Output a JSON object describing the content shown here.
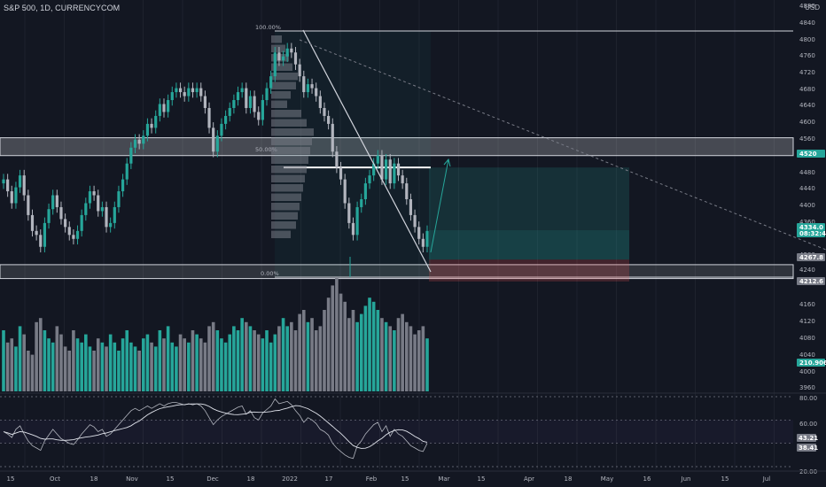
{
  "header": {
    "symbol_line": "S&P 500, 1D, CURRENCYCOM",
    "currency": "USD"
  },
  "colors": {
    "background": "#131722",
    "up": "#26a69a",
    "down": "#b2b5be",
    "zone": "#ffffff",
    "target_zone": "#26a69a",
    "stop_zone": "#ef5350"
  },
  "price_axis": {
    "ticks": [
      "4880",
      "4840",
      "4800",
      "4760",
      "4720",
      "4680",
      "4640",
      "4600",
      "4560",
      "4480",
      "4440",
      "4400",
      "4360",
      "4280",
      "4240",
      "4160",
      "4120",
      "4080",
      "4040",
      "4000",
      "3960"
    ],
    "badges": [
      {
        "label": "4520",
        "color": "#26a69a"
      },
      {
        "label": "4334.0",
        "sub": "08:32:40",
        "color": "#26a69a"
      },
      {
        "label": "4267.8",
        "color": "#787b86"
      },
      {
        "label": "4212.6",
        "color": "#787b86"
      },
      {
        "label": "210.9066",
        "color": "#26a69a"
      }
    ]
  },
  "rsi_axis": {
    "ticks": [
      "80.00",
      "60.00",
      "20.00"
    ],
    "badges": [
      {
        "label": "43.21",
        "color": "#787b86"
      },
      {
        "label": "38.41",
        "color": "#787b86"
      }
    ]
  },
  "time_axis": [
    "15",
    "Oct",
    "18",
    "Nov",
    "15",
    "Dec",
    "18",
    "2022",
    "17",
    "Feb",
    "15",
    "Mar",
    "15",
    "Apr",
    "18",
    "May",
    "16",
    "Jun",
    "15",
    "Jul"
  ],
  "fib_labels": [
    "100.00%",
    "50.00%",
    "0.00%"
  ],
  "chart_data": {
    "type": "candlestick",
    "title": "S&P 500, 1D, CURRENCYCOM",
    "ylabel": "USD",
    "ylim": [
      3940,
      4900
    ],
    "candles_close": [
      4470,
      4440,
      4410,
      4450,
      4480,
      4430,
      4380,
      4340,
      4330,
      4300,
      4360,
      4395,
      4430,
      4400,
      4370,
      4350,
      4330,
      4320,
      4340,
      4380,
      4410,
      4440,
      4430,
      4390,
      4400,
      4350,
      4360,
      4400,
      4440,
      4470,
      4510,
      4550,
      4570,
      4560,
      4580,
      4610,
      4600,
      4630,
      4660,
      4640,
      4670,
      4690,
      4700,
      4690,
      4680,
      4700,
      4690,
      4700,
      4680,
      4650,
      4600,
      4540,
      4580,
      4610,
      4630,
      4650,
      4670,
      4690,
      4700,
      4650,
      4680,
      4640,
      4620,
      4670,
      4700,
      4730,
      4790,
      4770,
      4780,
      4800,
      4790,
      4760,
      4730,
      4690,
      4710,
      4700,
      4680,
      4650,
      4630,
      4610,
      4540,
      4500,
      4470,
      4410,
      4360,
      4330,
      4400,
      4420,
      4460,
      4480,
      4510,
      4530,
      4470,
      4520,
      4460,
      4510,
      4480,
      4460,
      4420,
      4380,
      4350,
      4320,
      4300,
      4340
    ],
    "volume": [
      150,
      120,
      130,
      110,
      160,
      140,
      100,
      90,
      170,
      180,
      150,
      130,
      120,
      160,
      140,
      110,
      100,
      150,
      130,
      120,
      140,
      110,
      100,
      130,
      120,
      110,
      140,
      120,
      100,
      130,
      150,
      120,
      110,
      100,
      130,
      140,
      120,
      110,
      150,
      130,
      160,
      120,
      110,
      140,
      130,
      120,
      150,
      140,
      130,
      120,
      160,
      170,
      150,
      130,
      120,
      140,
      160,
      150,
      180,
      170,
      160,
      150,
      140,
      130,
      150,
      120,
      140,
      160,
      180,
      160,
      170,
      150,
      190,
      200,
      170,
      180,
      150,
      160,
      200,
      230,
      260,
      280,
      240,
      220,
      180,
      200,
      170,
      190,
      210,
      230,
      220,
      200,
      180,
      170,
      160,
      150,
      180,
      190,
      170,
      160,
      140,
      150,
      160,
      130
    ],
    "rsi": [
      50,
      48,
      45,
      52,
      55,
      48,
      42,
      38,
      36,
      34,
      42,
      47,
      52,
      48,
      44,
      42,
      40,
      39,
      43,
      48,
      52,
      56,
      54,
      50,
      52,
      46,
      48,
      52,
      56,
      60,
      64,
      68,
      70,
      68,
      70,
      72,
      70,
      72,
      74,
      72,
      74,
      75,
      75,
      74,
      73,
      74,
      73,
      74,
      72,
      68,
      62,
      56,
      60,
      63,
      65,
      67,
      69,
      71,
      72,
      65,
      68,
      62,
      60,
      66,
      69,
      72,
      78,
      74,
      75,
      76,
      73,
      68,
      64,
      58,
      62,
      60,
      57,
      52,
      50,
      47,
      40,
      36,
      33,
      30,
      28,
      27,
      38,
      42,
      48,
      52,
      56,
      58,
      50,
      55,
      46,
      52,
      48,
      46,
      42,
      38,
      36,
      34,
      33,
      40
    ],
    "rsi_levels": [
      80,
      60,
      40,
      20
    ],
    "annotations": {
      "resistance_zone": [
        4530,
        4575
      ],
      "support_zone": [
        4220,
        4255
      ],
      "target_price": 4500,
      "stop_price": 4212.6,
      "entry_price": 4267.8
    }
  }
}
